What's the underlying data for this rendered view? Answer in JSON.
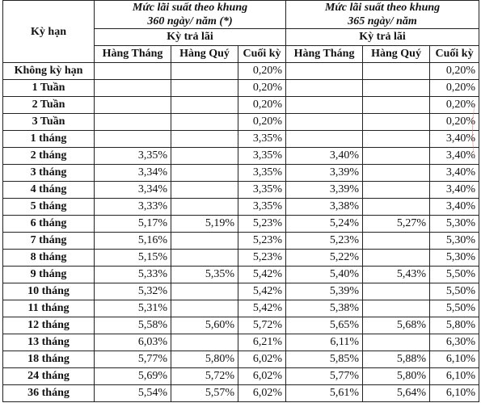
{
  "header": {
    "term_label": "Kỳ hạn",
    "group1_line1": "Mức lãi suất theo khung",
    "group1_line2": "360 ngày/ năm (*)",
    "group2_line1": "Mức lãi suất theo khung",
    "group2_line2": "365 ngày/ năm",
    "payment_label": "Kỳ trả lãi",
    "col_monthly": "Hàng Tháng",
    "col_quarterly": "Hàng Quý",
    "col_end": "Cuối kỳ"
  },
  "rows": [
    {
      "term": "Không kỳ hạn",
      "m360": "",
      "q360": "",
      "e360": "0,20%",
      "m365": "",
      "q365": "",
      "e365": "0,20%"
    },
    {
      "term": "1 Tuần",
      "m360": "",
      "q360": "",
      "e360": "0,20%",
      "m365": "",
      "q365": "",
      "e365": "0,20%"
    },
    {
      "term": "2 Tuần",
      "m360": "",
      "q360": "",
      "e360": "0,20%",
      "m365": "",
      "q365": "",
      "e365": "0,20%"
    },
    {
      "term": "3 Tuần",
      "m360": "",
      "q360": "",
      "e360": "0,20%",
      "m365": "",
      "q365": "",
      "e365": "0,20%"
    },
    {
      "term": "1 tháng",
      "m360": "",
      "q360": "",
      "e360": "3,35%",
      "m365": "",
      "q365": "",
      "e365": "3,40%"
    },
    {
      "term": "2 tháng",
      "m360": "3,35%",
      "q360": "",
      "e360": "3,35%",
      "m365": "3,40%",
      "q365": "",
      "e365": "3,40%"
    },
    {
      "term": "3 tháng",
      "m360": "3,34%",
      "q360": "",
      "e360": "3,35%",
      "m365": "3,39%",
      "q365": "",
      "e365": "3,40%"
    },
    {
      "term": "4 tháng",
      "m360": "3,34%",
      "q360": "",
      "e360": "3,35%",
      "m365": "3,39%",
      "q365": "",
      "e365": "3,40%"
    },
    {
      "term": "5 tháng",
      "m360": "3,33%",
      "q360": "",
      "e360": "3,35%",
      "m365": "3,38%",
      "q365": "",
      "e365": "3,40%"
    },
    {
      "term": "6 tháng",
      "m360": "5,17%",
      "q360": "5,19%",
      "e360": "5,23%",
      "m365": "5,24%",
      "q365": "5,27%",
      "e365": "5,30%"
    },
    {
      "term": "7 tháng",
      "m360": "5,16%",
      "q360": "",
      "e360": "5,23%",
      "m365": "5,23%",
      "q365": "",
      "e365": "5,30%"
    },
    {
      "term": "8 tháng",
      "m360": "5,15%",
      "q360": "",
      "e360": "5,23%",
      "m365": "5,22%",
      "q365": "",
      "e365": "5,30%"
    },
    {
      "term": "9 tháng",
      "m360": "5,33%",
      "q360": "5,35%",
      "e360": "5,42%",
      "m365": "5,40%",
      "q365": "5,43%",
      "e365": "5,50%"
    },
    {
      "term": "10 tháng",
      "m360": "5,32%",
      "q360": "",
      "e360": "5,42%",
      "m365": "5,39%",
      "q365": "",
      "e365": "5,50%"
    },
    {
      "term": "11 tháng",
      "m360": "5,31%",
      "q360": "",
      "e360": "5,42%",
      "m365": "5,38%",
      "q365": "",
      "e365": "5,50%"
    },
    {
      "term": "12 tháng",
      "m360": "5,58%",
      "q360": "5,60%",
      "e360": "5,72%",
      "m365": "5,65%",
      "q365": "5,68%",
      "e365": "5,80%"
    },
    {
      "term": "13 tháng",
      "m360": "6,03%",
      "q360": "",
      "e360": "6,21%",
      "m365": "6,11%",
      "q365": "",
      "e365": "6,30%"
    },
    {
      "term": "18 tháng",
      "m360": "5,77%",
      "q360": "5,80%",
      "e360": "6,02%",
      "m365": "5,85%",
      "q365": "5,88%",
      "e365": "6,10%"
    },
    {
      "term": "24 tháng",
      "m360": "5,69%",
      "q360": "5,72%",
      "e360": "6,02%",
      "m365": "5,77%",
      "q365": "5,80%",
      "e365": "6,10%"
    },
    {
      "term": "36 tháng",
      "m360": "5,54%",
      "q360": "5,57%",
      "e360": "6,02%",
      "m365": "5,61%",
      "q365": "5,64%",
      "e365": "6,10%"
    }
  ]
}
